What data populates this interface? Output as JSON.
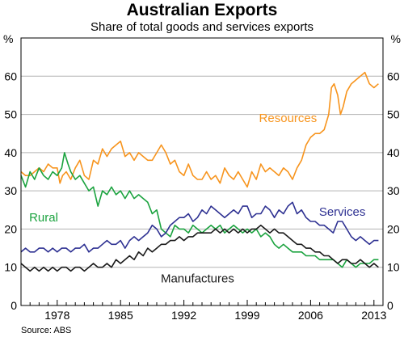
{
  "chart_data": {
    "type": "line",
    "title": "Australian Exports",
    "subtitle": "Share of total goods and services exports",
    "y_unit_left": "%",
    "y_unit_right": "%",
    "ylim": [
      0,
      70
    ],
    "y_ticks": [
      0,
      10,
      20,
      30,
      40,
      50,
      60
    ],
    "xlim": [
      1974,
      2014
    ],
    "x_ticks": [
      1978,
      1985,
      1992,
      1999,
      2006,
      2013
    ],
    "x_tick_labels": [
      "1978",
      "1985",
      "1992",
      "1999",
      "2006",
      "2013"
    ],
    "grid": true,
    "source": "Source: ABS",
    "series": [
      {
        "name": "Resources",
        "color": "#F7941D",
        "x": [
          1974.0,
          1974.5,
          1975.0,
          1975.5,
          1976.0,
          1976.5,
          1977.0,
          1977.5,
          1978.0,
          1978.3,
          1978.6,
          1979.0,
          1979.5,
          1980.0,
          1980.5,
          1981.0,
          1981.5,
          1982.0,
          1982.5,
          1983.0,
          1983.5,
          1984.0,
          1984.5,
          1985.0,
          1985.5,
          1986.0,
          1986.5,
          1987.0,
          1987.5,
          1988.0,
          1988.5,
          1989.0,
          1989.5,
          1990.0,
          1990.5,
          1991.0,
          1991.5,
          1992.0,
          1992.5,
          1993.0,
          1993.5,
          1994.0,
          1994.5,
          1995.0,
          1995.5,
          1996.0,
          1996.5,
          1997.0,
          1997.5,
          1998.0,
          1998.5,
          1999.0,
          1999.5,
          2000.0,
          2000.5,
          2001.0,
          2001.5,
          2002.0,
          2002.5,
          2003.0,
          2003.5,
          2004.0,
          2004.5,
          2005.0,
          2005.5,
          2006.0,
          2006.5,
          2007.0,
          2007.5,
          2008.0,
          2008.3,
          2008.6,
          2009.0,
          2009.3,
          2009.6,
          2010.0,
          2010.5,
          2011.0,
          2011.5,
          2012.0,
          2012.5,
          2013.0,
          2013.5
        ],
        "values": [
          35,
          34,
          34,
          35,
          36,
          35,
          37,
          36,
          36,
          32,
          34,
          35,
          33,
          36,
          38,
          34,
          33,
          38,
          37,
          41,
          39,
          41,
          42,
          43,
          39,
          40,
          38,
          40,
          39,
          38,
          38,
          40,
          42,
          40,
          37,
          38,
          35,
          34,
          37,
          34,
          33,
          33,
          35,
          33,
          34,
          32,
          36,
          34,
          33,
          35,
          33,
          31,
          35,
          33,
          37,
          35,
          36,
          35,
          34,
          36,
          35,
          33,
          36,
          38,
          42,
          44,
          45,
          45,
          46,
          50,
          57,
          58,
          55,
          50,
          52,
          56,
          58,
          59,
          60,
          61,
          58,
          57,
          58
        ]
      },
      {
        "name": "Rural",
        "color": "#1BA33F",
        "x": [
          1974.0,
          1974.5,
          1975.0,
          1975.5,
          1976.0,
          1976.5,
          1977.0,
          1977.5,
          1978.0,
          1978.5,
          1978.8,
          1979.2,
          1979.5,
          1980.0,
          1980.5,
          1981.0,
          1981.5,
          1982.0,
          1982.5,
          1983.0,
          1983.5,
          1984.0,
          1984.5,
          1985.0,
          1985.5,
          1986.0,
          1986.5,
          1987.0,
          1987.5,
          1988.0,
          1988.5,
          1989.0,
          1989.5,
          1990.0,
          1990.5,
          1991.0,
          1991.5,
          1992.0,
          1992.5,
          1993.0,
          1993.5,
          1994.0,
          1994.5,
          1995.0,
          1995.5,
          1996.0,
          1996.5,
          1997.0,
          1997.5,
          1998.0,
          1998.5,
          1999.0,
          1999.5,
          2000.0,
          2000.5,
          2001.0,
          2001.5,
          2002.0,
          2002.5,
          2003.0,
          2003.5,
          2004.0,
          2004.5,
          2005.0,
          2005.5,
          2006.0,
          2006.5,
          2007.0,
          2007.5,
          2008.0,
          2008.5,
          2009.0,
          2009.5,
          2010.0,
          2010.5,
          2011.0,
          2011.5,
          2012.0,
          2012.5,
          2013.0,
          2013.5
        ],
        "values": [
          34,
          31,
          35,
          33,
          36,
          34,
          33,
          35,
          34,
          36,
          40,
          37,
          35,
          33,
          34,
          32,
          30,
          31,
          26,
          30,
          29,
          31,
          29,
          30,
          28,
          30,
          28,
          29,
          28,
          27,
          24,
          25,
          20,
          19,
          18,
          21,
          20,
          20,
          19,
          21,
          20,
          19,
          20,
          21,
          20,
          21,
          19,
          20,
          21,
          20,
          19,
          20,
          19,
          20,
          18,
          19,
          18,
          16,
          15,
          16,
          15,
          14,
          14,
          14,
          13,
          13,
          13,
          12,
          12,
          12,
          12,
          11,
          10,
          12,
          11,
          10,
          11,
          11,
          11,
          12,
          12
        ]
      },
      {
        "name": "Services",
        "color": "#2E3192",
        "x": [
          1974.0,
          1974.5,
          1975.0,
          1975.5,
          1976.0,
          1976.5,
          1977.0,
          1977.5,
          1978.0,
          1978.5,
          1979.0,
          1979.5,
          1980.0,
          1980.5,
          1981.0,
          1981.5,
          1982.0,
          1982.5,
          1983.0,
          1983.5,
          1984.0,
          1984.5,
          1985.0,
          1985.5,
          1986.0,
          1986.5,
          1987.0,
          1987.5,
          1988.0,
          1988.5,
          1989.0,
          1989.5,
          1990.0,
          1990.5,
          1991.0,
          1991.5,
          1992.0,
          1992.5,
          1993.0,
          1993.5,
          1994.0,
          1994.5,
          1995.0,
          1995.5,
          1996.0,
          1996.5,
          1997.0,
          1997.5,
          1998.0,
          1998.5,
          1999.0,
          1999.5,
          2000.0,
          2000.5,
          2001.0,
          2001.5,
          2002.0,
          2002.5,
          2003.0,
          2003.5,
          2004.0,
          2004.5,
          2005.0,
          2005.5,
          2006.0,
          2006.5,
          2007.0,
          2007.5,
          2008.0,
          2008.5,
          2009.0,
          2009.5,
          2010.0,
          2010.5,
          2011.0,
          2011.5,
          2012.0,
          2012.5,
          2013.0,
          2013.5
        ],
        "values": [
          14,
          15,
          14,
          14,
          15,
          15,
          14,
          15,
          14,
          15,
          15,
          14,
          15,
          15,
          16,
          14,
          15,
          15,
          16,
          17,
          16,
          16,
          17,
          15,
          17,
          18,
          17,
          18,
          19,
          21,
          20,
          18,
          19,
          21,
          22,
          23,
          23,
          24,
          22,
          23,
          25,
          24,
          26,
          25,
          24,
          23,
          24,
          25,
          24,
          26,
          26,
          23,
          24,
          24,
          26,
          25,
          23,
          25,
          24,
          26,
          27,
          24,
          25,
          23,
          22,
          22,
          21,
          21,
          20,
          19,
          22,
          22,
          20,
          18,
          17,
          18,
          17,
          16,
          17,
          17
        ]
      },
      {
        "name": "Manufactures",
        "color": "#1A1A1A",
        "x": [
          1974.0,
          1974.5,
          1975.0,
          1975.5,
          1976.0,
          1976.5,
          1977.0,
          1977.5,
          1978.0,
          1978.5,
          1979.0,
          1979.5,
          1980.0,
          1980.5,
          1981.0,
          1981.5,
          1982.0,
          1982.5,
          1983.0,
          1983.5,
          1984.0,
          1984.5,
          1985.0,
          1985.5,
          1986.0,
          1986.5,
          1987.0,
          1987.5,
          1988.0,
          1988.5,
          1989.0,
          1989.5,
          1990.0,
          1990.5,
          1991.0,
          1991.5,
          1992.0,
          1992.5,
          1993.0,
          1993.5,
          1994.0,
          1994.5,
          1995.0,
          1995.5,
          1996.0,
          1996.5,
          1997.0,
          1997.5,
          1998.0,
          1998.5,
          1999.0,
          1999.5,
          2000.0,
          2000.5,
          2001.0,
          2001.5,
          2002.0,
          2002.5,
          2003.0,
          2003.5,
          2004.0,
          2004.5,
          2005.0,
          2005.5,
          2006.0,
          2006.5,
          2007.0,
          2007.5,
          2008.0,
          2008.5,
          2009.0,
          2009.5,
          2010.0,
          2010.5,
          2011.0,
          2011.5,
          2012.0,
          2012.5,
          2013.0,
          2013.5
        ],
        "values": [
          11,
          10,
          9,
          10,
          9,
          10,
          9,
          10,
          9,
          10,
          10,
          9,
          10,
          10,
          9,
          10,
          11,
          10,
          10,
          11,
          10,
          12,
          11,
          12,
          13,
          12,
          14,
          13,
          15,
          14,
          15,
          16,
          16,
          17,
          17,
          18,
          17,
          18,
          18,
          19,
          19,
          19,
          19,
          20,
          19,
          20,
          19,
          20,
          19,
          20,
          19,
          20,
          20,
          21,
          20,
          19,
          20,
          19,
          19,
          18,
          17,
          16,
          16,
          15,
          15,
          14,
          14,
          13,
          13,
          12,
          11,
          12,
          12,
          11,
          11,
          12,
          11,
          10,
          11,
          10
        ]
      }
    ],
    "labels": [
      {
        "text": "Resources",
        "series": 0,
        "x": 2003.5,
        "y": 48
      },
      {
        "text": "Rural",
        "series": 1,
        "x": 1976.5,
        "y": 22
      },
      {
        "text": "Services",
        "series": 2,
        "x": 2009.5,
        "y": 23.5
      },
      {
        "text": "Manufactures",
        "series": 3,
        "x": 1993.5,
        "y": 6
      }
    ]
  }
}
